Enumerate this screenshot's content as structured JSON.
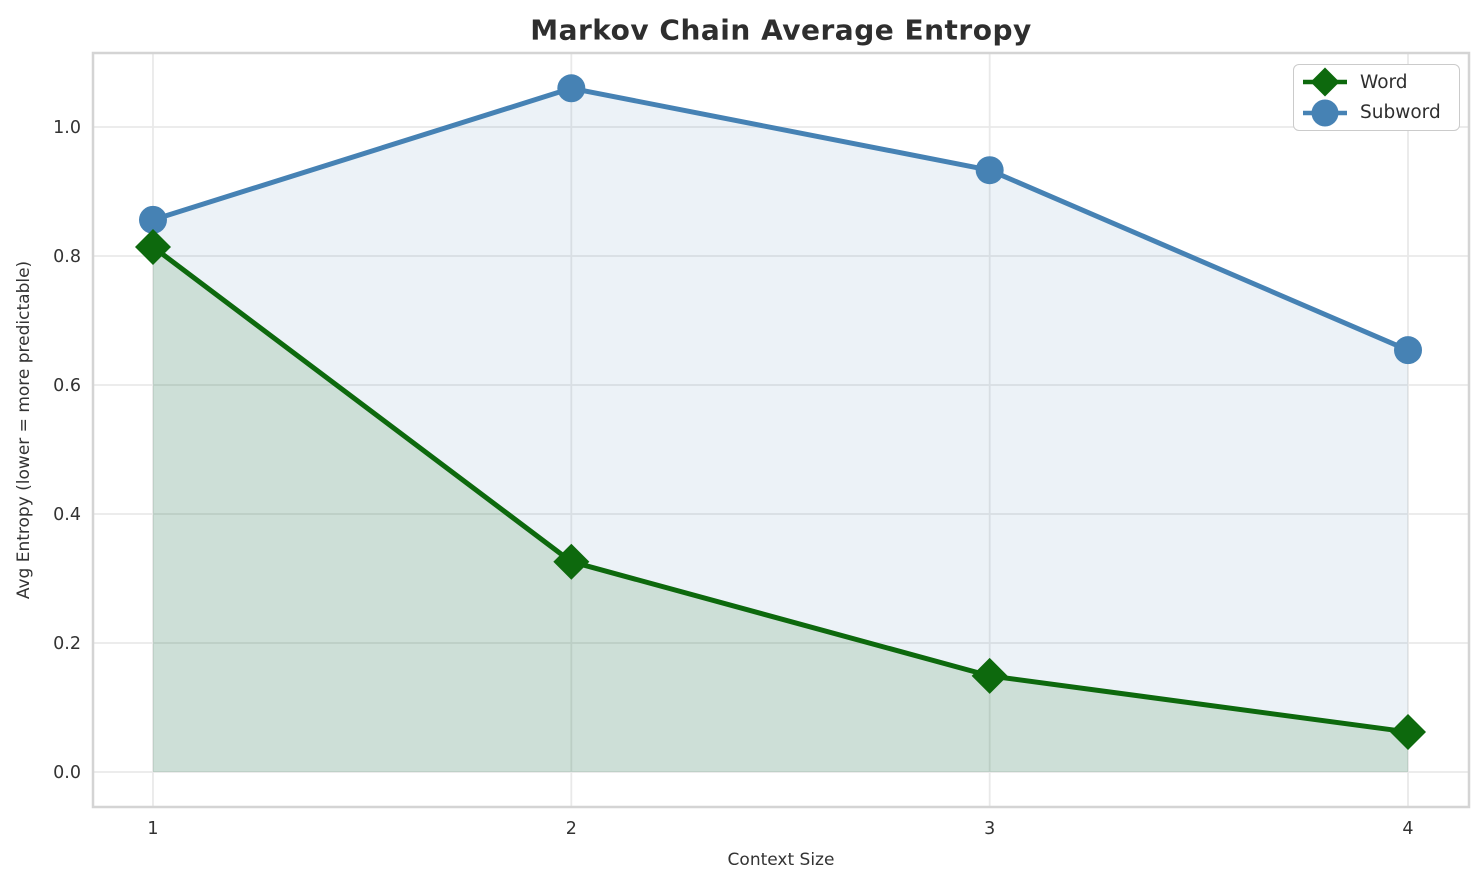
{
  "chart_data": {
    "type": "line",
    "title": "Markov Chain Average Entropy",
    "xlabel": "Context Size",
    "ylabel": "Avg Entropy (lower = more predictable)",
    "x": [
      1,
      2,
      3,
      4
    ],
    "series": [
      {
        "name": "Word",
        "values": [
          0.814,
          0.326,
          0.149,
          0.062
        ],
        "color": "#0d690d",
        "marker": "diamond",
        "area_fill": "rgba(0,100,0,0.13)"
      },
      {
        "name": "Subword",
        "values": [
          0.856,
          1.06,
          0.933,
          0.654
        ],
        "color": "#4682b4",
        "marker": "circle",
        "area_fill": "rgba(70,130,180,0.10)"
      }
    ],
    "xticks": [
      1,
      2,
      3,
      4
    ],
    "yticks": [
      0.0,
      0.2,
      0.4,
      0.6,
      0.8,
      1.0
    ],
    "xlim": [
      0.8566,
      4.1458
    ],
    "ylim": [
      -0.0543,
      1.1147
    ],
    "grid": true,
    "legend_position": "upper right",
    "grid_color": "#e9e9e9",
    "spine_color": "#d4d4d4",
    "background_color": "#ffffff"
  }
}
